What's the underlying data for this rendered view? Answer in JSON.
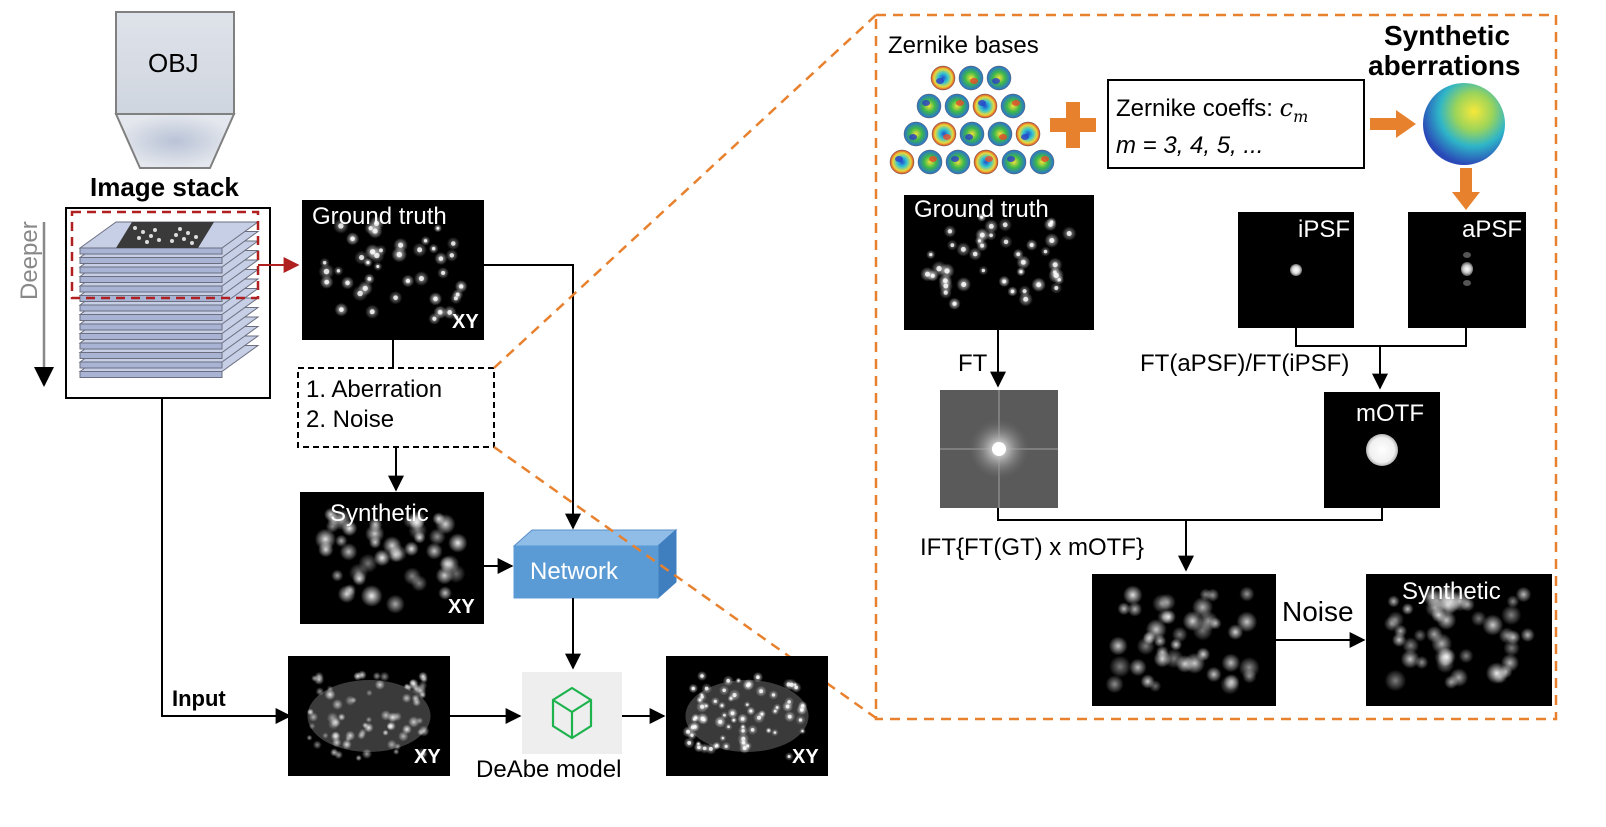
{
  "left": {
    "objective_label": "OBJ",
    "stack_title": "Image stack",
    "depth_label": "Deeper",
    "gt_label": "Ground truth",
    "gt_plane": "XY",
    "steps": [
      "1. Aberration",
      "2. Noise"
    ],
    "synthetic_label": "Synthetic",
    "synthetic_plane": "XY",
    "network_label": "Network",
    "input_label": "Input",
    "input_plane": "XY",
    "model_label": "DeAbe model",
    "output_plane": "XY"
  },
  "right": {
    "zernike_title": "Zernike bases",
    "coeffs_line1": "Zernike coeffs: ",
    "coeffs_symbol": "c",
    "coeffs_sub": "m",
    "coeffs_line2": "m = 3, 4, 5, ...",
    "aberrations_title_1": "Synthetic",
    "aberrations_title_2": "aberrations",
    "gt_label": "Ground truth",
    "ipsf_label": "iPSF",
    "apsf_label": "aPSF",
    "ft_label": "FT",
    "ratio_label": "FT(aPSF)/FT(iPSF)",
    "motf_label": "mOTF",
    "ift_label": "IFT{FT(GT) x mOTF}",
    "noise_label": "Noise",
    "synthetic_label": "Synthetic"
  },
  "colors": {
    "accent_orange": "#E8812E",
    "dashed_red": "#B02020",
    "network_blue": "#5B9BD5"
  }
}
